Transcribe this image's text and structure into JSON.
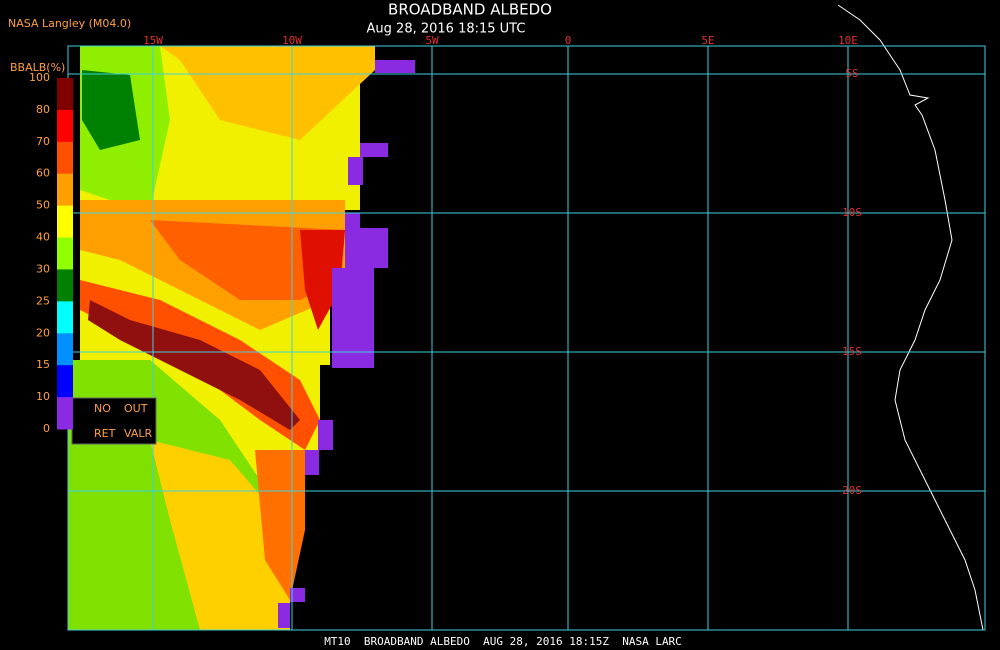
{
  "header": {
    "title": "BROADBAND ALBEDO",
    "subtitle": "Aug 28, 2016 18:15 UTC",
    "source": "NASA Langley (M04.0)"
  },
  "longitude_labels": [
    "15W",
    "10W",
    "5W",
    "0",
    "5E",
    "10E"
  ],
  "latitude_labels": [
    "5S",
    "10S",
    "15S",
    "20S"
  ],
  "colorbar": {
    "label": "BBALB(%)",
    "ticks": [
      "100",
      "80",
      "70",
      "60",
      "50",
      "40",
      "30",
      "25",
      "20",
      "15",
      "10",
      "0"
    ],
    "no_retrieval": [
      "NO",
      "RET"
    ],
    "out_of_range": [
      "OUT",
      "VALR"
    ]
  },
  "footer": "MT10  BROADBAND ALBEDO  AUG 28, 2016 18:15Z  NASA LARC"
}
